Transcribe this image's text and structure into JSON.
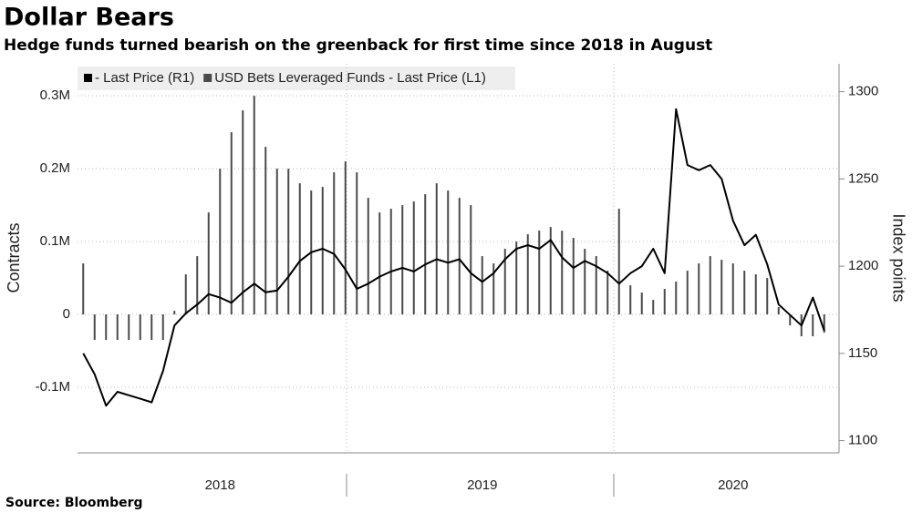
{
  "chart_data": {
    "type": "combo",
    "title": "Dollar Bears",
    "subtitle": "Hedge funds turned bearish on the greenback for first time since 2018 in August",
    "source": "Source: Bloomberg",
    "y_label": "Contracts",
    "y2_label": "Index points",
    "legend": "top-left",
    "grid": true,
    "categories": [
      null,
      null,
      null,
      null,
      null,
      null,
      null,
      null,
      null,
      null,
      null,
      null,
      "2018",
      null,
      null,
      null,
      null,
      null,
      null,
      null,
      null,
      null,
      null,
      null,
      null,
      null,
      null,
      null,
      null,
      null,
      null,
      null,
      null,
      null,
      null,
      "2019",
      null,
      null,
      null,
      null,
      null,
      null,
      null,
      null,
      null,
      null,
      null,
      null,
      null,
      null,
      null,
      null,
      null,
      null,
      null,
      null,
      null,
      "2020",
      null,
      null,
      null,
      null,
      null,
      null,
      null,
      null
    ],
    "ylim": [
      -190000,
      344000
    ],
    "yticks": [
      {
        "value": -100000,
        "label": "-0.1M"
      },
      0,
      {
        "value": 100000,
        "label": "0.1M"
      },
      {
        "value": 200000,
        "label": "0.2M"
      },
      {
        "value": 300000,
        "label": "0.3M"
      }
    ],
    "y2lim": [
      1093,
      1316
    ],
    "y2ticks": [
      1100,
      1150,
      1200,
      1250,
      1300
    ],
    "series": [
      {
        "name": "- Last Price (R1)",
        "type": "line",
        "axis": "y2",
        "color": "#000000",
        "values": [
          1150,
          1138,
          1120,
          1128,
          1126,
          1124,
          1122,
          1140,
          1166,
          1173,
          1178,
          1184,
          1182,
          1179,
          1185,
          1190,
          1185,
          1186,
          1194,
          1203,
          1208,
          1210,
          1207,
          1198,
          1187,
          1190,
          1194,
          1197,
          1199,
          1197,
          1201,
          1204,
          1202,
          1204,
          1196,
          1191,
          1196,
          1204,
          1210,
          1212,
          1210,
          1215,
          1205,
          1199,
          1203,
          1200,
          1196,
          1190,
          1196,
          1200,
          1210,
          1196,
          1290,
          1258,
          1255,
          1258,
          1250,
          1226,
          1212,
          1218,
          1201,
          1178,
          1172,
          1166,
          1182,
          1163
        ]
      },
      {
        "name": "USD Bets Leveraged Funds - Last Price (L1)",
        "type": "bar",
        "axis": "y",
        "color": "#4a4a4a",
        "values": [
          70000,
          -35000,
          -35000,
          -35000,
          -35000,
          -35000,
          -35000,
          -35000,
          5000,
          55000,
          80000,
          140000,
          200000,
          250000,
          280000,
          300000,
          230000,
          200000,
          200000,
          180000,
          170000,
          175000,
          195000,
          210000,
          195000,
          160000,
          140000,
          145000,
          150000,
          155000,
          165000,
          180000,
          170000,
          160000,
          150000,
          80000,
          70000,
          90000,
          100000,
          110000,
          115000,
          120000,
          115000,
          105000,
          90000,
          80000,
          60000,
          145000,
          40000,
          30000,
          20000,
          35000,
          45000,
          60000,
          70000,
          80000,
          75000,
          70000,
          60000,
          55000,
          50000,
          10000,
          -15000,
          -30000,
          -30000,
          -25000
        ]
      }
    ]
  }
}
